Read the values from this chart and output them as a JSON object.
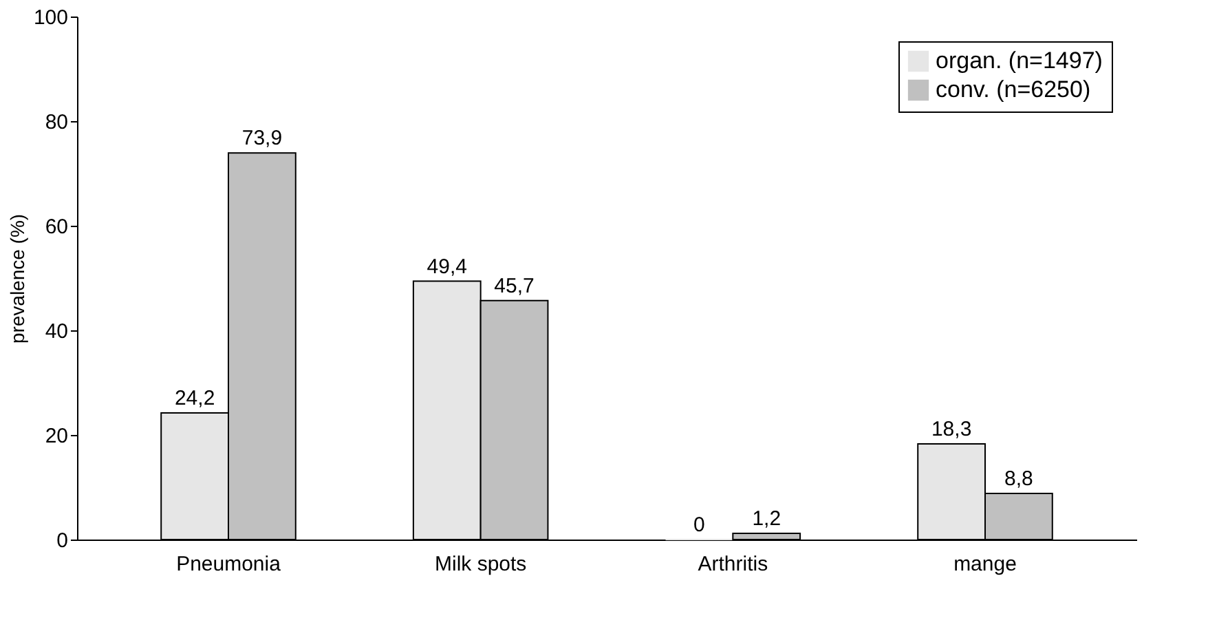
{
  "chart_data": {
    "type": "bar",
    "ylabel": "prevalence (%)",
    "categories": [
      "Pneumonia",
      "Milk spots",
      "Arthritis",
      "mange"
    ],
    "series": [
      {
        "name": "organ. (n=1497)",
        "color": "#e6e6e6",
        "values": [
          24.2,
          49.4,
          0,
          18.3
        ],
        "value_labels": [
          "24,2",
          "49,4",
          "0",
          "18,3"
        ]
      },
      {
        "name": "conv. (n=6250)",
        "color": "#c0c0c0",
        "values": [
          73.9,
          45.7,
          1.2,
          8.8
        ],
        "value_labels": [
          "73,9",
          "45,7",
          "1,2",
          "8,8"
        ]
      }
    ],
    "ylim": [
      0,
      100
    ],
    "yticks": [
      0,
      20,
      40,
      60,
      80,
      100
    ],
    "grid": false,
    "legend": "top right"
  }
}
